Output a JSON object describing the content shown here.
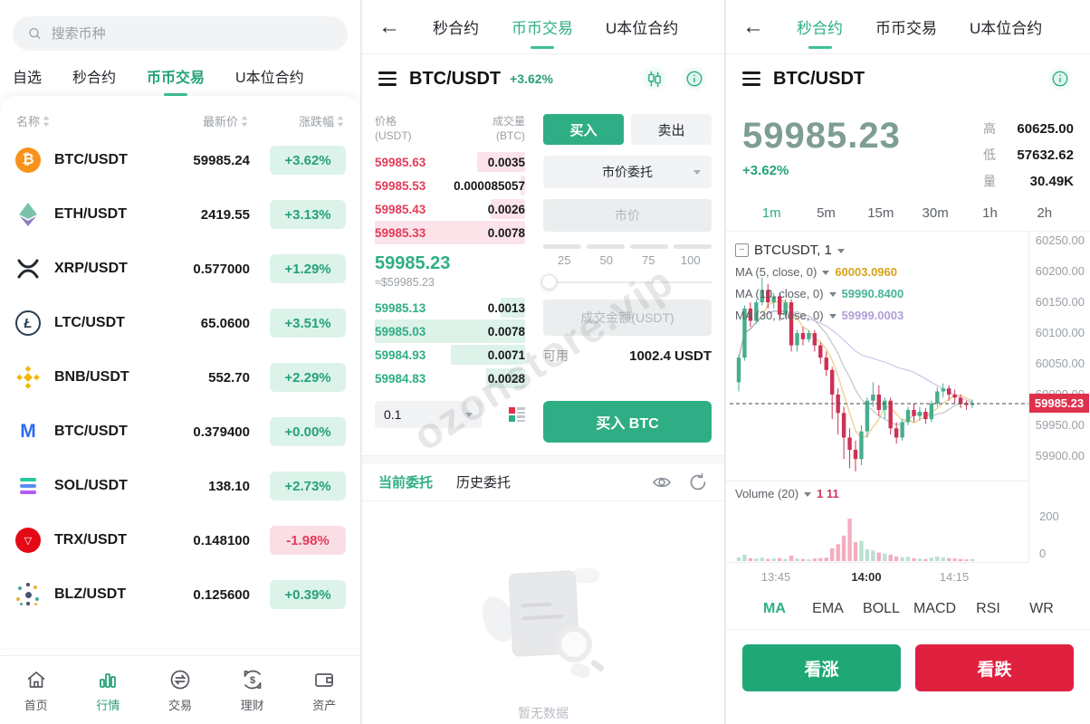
{
  "colors": {
    "accent_green": "#26a17b",
    "accent_red": "#e0314b",
    "badge_green_bg": "#dcf3e9",
    "badge_red_bg": "#fadee5",
    "candle_up": "#46ad8d",
    "candle_down": "#cd3154"
  },
  "left": {
    "search_placeholder": "搜索币种",
    "tabs": [
      {
        "label": "自选"
      },
      {
        "label": "秒合约"
      },
      {
        "label": "币币交易"
      },
      {
        "label": "U本位合约"
      }
    ],
    "columns": [
      {
        "label": "名称"
      },
      {
        "label": "最新价"
      },
      {
        "label": "涨跌幅"
      }
    ],
    "rows": [
      {
        "symbol": "BTC/USDT",
        "price": "59985.24",
        "change": "+3.62%",
        "dir": "up"
      },
      {
        "symbol": "ETH/USDT",
        "price": "2419.55",
        "change": "+3.13%",
        "dir": "up"
      },
      {
        "symbol": "XRP/USDT",
        "price": "0.577000",
        "change": "+1.29%",
        "dir": "up"
      },
      {
        "symbol": "LTC/USDT",
        "price": "65.0600",
        "change": "+3.51%",
        "dir": "up"
      },
      {
        "symbol": "BNB/USDT",
        "price": "552.70",
        "change": "+2.29%",
        "dir": "up"
      },
      {
        "symbol": "BTC/USDT",
        "price": "0.379400",
        "change": "+0.00%",
        "dir": "up"
      },
      {
        "symbol": "SOL/USDT",
        "price": "138.10",
        "change": "+2.73%",
        "dir": "up"
      },
      {
        "symbol": "TRX/USDT",
        "price": "0.148100",
        "change": "-1.98%",
        "dir": "down"
      },
      {
        "symbol": "BLZ/USDT",
        "price": "0.125600",
        "change": "+0.39%",
        "dir": "up"
      }
    ],
    "nav": [
      {
        "label": "首页"
      },
      {
        "label": "行情"
      },
      {
        "label": "交易"
      },
      {
        "label": "理财"
      },
      {
        "label": "资产"
      }
    ]
  },
  "middle": {
    "tabs": [
      {
        "label": "秒合约"
      },
      {
        "label": "币币交易"
      },
      {
        "label": "U本位合约"
      }
    ],
    "symbol": "BTC/USDT",
    "change": "+3.62%",
    "orderbook": {
      "price_header": "价格",
      "price_unit": "(USDT)",
      "vol_header": "成交量",
      "vol_unit": "(BTC)",
      "asks": [
        {
          "price": "59985.63",
          "vol": "0.0035",
          "depth": 0.55,
          "full": false
        },
        {
          "price": "59985.53",
          "vol": "0.000085057",
          "depth": 0.05,
          "full": false
        },
        {
          "price": "59985.43",
          "vol": "0.0026",
          "depth": 0.4,
          "full": false
        },
        {
          "price": "59985.33",
          "vol": "0.0078",
          "depth": 1,
          "full": true
        }
      ],
      "last": "59985.23",
      "approx": "≈$59985.23",
      "bids": [
        {
          "price": "59985.13",
          "vol": "0.0013",
          "depth": 0.28,
          "full": false
        },
        {
          "price": "59985.03",
          "vol": "0.0078",
          "depth": 1,
          "full": true
        },
        {
          "price": "59984.93",
          "vol": "0.0071",
          "depth": 0.85,
          "full": false
        },
        {
          "price": "59984.83",
          "vol": "0.0028",
          "depth": 0.45,
          "full": false
        }
      ],
      "tick": "0.1"
    },
    "trade": {
      "buy": "买入",
      "sell": "卖出",
      "order_type": "市价委托",
      "price_placeholder": "市价",
      "percents": [
        "25",
        "50",
        "75",
        "100"
      ],
      "amount_placeholder": "成交金额(USDT)",
      "available_label": "可用",
      "available_value": "1002.4 USDT",
      "submit": "买入 BTC"
    },
    "orders": {
      "tabs": [
        {
          "label": "当前委托"
        },
        {
          "label": "历史委托"
        }
      ],
      "empty_text": "暂无数据"
    },
    "watermark": "ozonstore.vip"
  },
  "right": {
    "tabs": [
      {
        "label": "秒合约"
      },
      {
        "label": "币币交易"
      },
      {
        "label": "U本位合约"
      }
    ],
    "symbol": "BTC/USDT",
    "price": "59985.23",
    "change": "+3.62%",
    "stats": [
      {
        "label": "高",
        "value": "60625.00"
      },
      {
        "label": "低",
        "value": "57632.62"
      },
      {
        "label": "量",
        "value": "30.49K"
      }
    ],
    "timeframes": [
      {
        "label": "1m"
      },
      {
        "label": "5m"
      },
      {
        "label": "15m"
      },
      {
        "label": "30m"
      },
      {
        "label": "1h"
      },
      {
        "label": "2h"
      }
    ],
    "indicators": [
      {
        "label": "MA"
      },
      {
        "label": "EMA"
      },
      {
        "label": "BOLL"
      },
      {
        "label": "MACD"
      },
      {
        "label": "RSI"
      },
      {
        "label": "WR"
      }
    ],
    "buy_button": "看涨",
    "sell_button": "看跌"
  },
  "chart_data": {
    "type": "candlestick",
    "legend": "BTCUSDT, 1",
    "ma_lines": [
      {
        "label": "MA (5, close, 0)",
        "value": "60003.0960",
        "color": "#d8a21b"
      },
      {
        "label": "MA (10, close, 0)",
        "value": "59990.8400",
        "color": "#49b39a"
      },
      {
        "label": "MA (30, close, 0)",
        "value": "59999.0003",
        "color": "#b09fd6"
      }
    ],
    "y_ticks": [
      "60250.00",
      "60200.00",
      "60150.00",
      "60100.00",
      "60050.00",
      "60000.00",
      "59950.00",
      "59900.00"
    ],
    "ylim": [
      59860,
      60265
    ],
    "last_price": 59985.23,
    "last_price_label": "59985.23",
    "volume_label": "Volume (20)",
    "volume_value": "1 11",
    "volume_ticks": [
      "200",
      "0"
    ],
    "vol_max": 290,
    "times": [
      "13:45",
      "14:00",
      "14:15"
    ],
    "candles": [
      [
        60020,
        60065,
        60005,
        60060
      ],
      [
        60060,
        60145,
        60055,
        60140
      ],
      [
        60140,
        60150,
        60110,
        60120
      ],
      [
        60120,
        60155,
        60115,
        60150
      ],
      [
        60150,
        60190,
        60145,
        60170
      ],
      [
        60170,
        60180,
        60140,
        60150
      ],
      [
        60150,
        60165,
        60140,
        60160
      ],
      [
        60160,
        60165,
        60120,
        60130
      ],
      [
        60130,
        60155,
        60125,
        60150
      ],
      [
        60150,
        60155,
        60070,
        60080
      ],
      [
        60080,
        60105,
        60070,
        60100
      ],
      [
        60100,
        60110,
        60080,
        60090
      ],
      [
        60090,
        60105,
        60085,
        60100
      ],
      [
        60100,
        60105,
        60070,
        60080
      ],
      [
        60080,
        60085,
        60050,
        60060
      ],
      [
        60060,
        60070,
        60030,
        60040
      ],
      [
        60040,
        60045,
        59960,
        60000
      ],
      [
        60000,
        60010,
        59935,
        59970
      ],
      [
        59970,
        59980,
        59895,
        59930
      ],
      [
        59930,
        59945,
        59880,
        59910
      ],
      [
        59910,
        59925,
        59875,
        59895
      ],
      [
        59895,
        59950,
        59885,
        59940
      ],
      [
        59940,
        59995,
        59930,
        59990
      ],
      [
        59990,
        60020,
        59980,
        60000
      ],
      [
        60000,
        60015,
        59965,
        59975
      ],
      [
        59975,
        59995,
        59960,
        59990
      ],
      [
        59990,
        59995,
        59935,
        59945
      ],
      [
        59945,
        59955,
        59920,
        59930
      ],
      [
        59930,
        59960,
        59925,
        59955
      ],
      [
        59955,
        59980,
        59950,
        59975
      ],
      [
        59975,
        59985,
        59955,
        59965
      ],
      [
        59965,
        59980,
        59958,
        59972
      ],
      [
        59972,
        59978,
        59952,
        59960
      ],
      [
        59960,
        59990,
        59955,
        59985
      ],
      [
        59985,
        60012,
        59980,
        60005
      ],
      [
        60005,
        60018,
        59995,
        60010
      ],
      [
        60010,
        60015,
        59990,
        60000
      ],
      [
        60000,
        60008,
        59985,
        59995
      ],
      [
        59995,
        60000,
        59978,
        59985
      ],
      [
        59985,
        59990,
        59975,
        59983
      ],
      [
        59983,
        59992,
        59978,
        59985
      ]
    ],
    "volumes": [
      18,
      30,
      14,
      12,
      16,
      10,
      12,
      14,
      10,
      26,
      12,
      10,
      8,
      12,
      14,
      16,
      60,
      80,
      120,
      200,
      90,
      95,
      55,
      50,
      40,
      35,
      30,
      22,
      18,
      20,
      14,
      12,
      10,
      16,
      22,
      18,
      14,
      12,
      10,
      8,
      10
    ]
  }
}
